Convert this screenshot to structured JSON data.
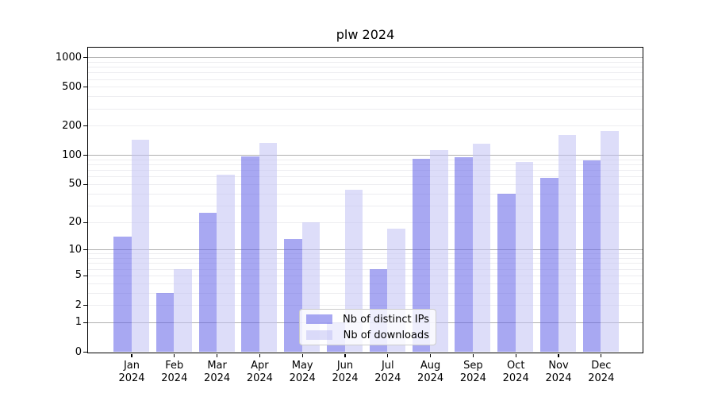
{
  "title": "plw 2024",
  "legend": {
    "items": [
      {
        "label": "Nb of distinct IPs",
        "color": "rgba(97,97,232,0.55)"
      },
      {
        "label": "Nb of downloads",
        "color": "rgba(193,193,244,0.55)"
      }
    ]
  },
  "colors": {
    "distinct_ips_bar": "rgba(97,97,232,0.55)",
    "downloads_bar": "rgba(193,193,244,0.55)",
    "major_grid": "#b0b0b0",
    "minor_grid": "#ededf0",
    "axis": "#000000"
  },
  "chart_data": {
    "type": "bar",
    "title": "plw 2024",
    "categories": [
      "Jan 2024",
      "Feb 2024",
      "Mar 2024",
      "Apr 2024",
      "May 2024",
      "Jun 2024",
      "Jul 2024",
      "Aug 2024",
      "Sep 2024",
      "Oct 2024",
      "Nov 2024",
      "Dec 2024"
    ],
    "series": [
      {
        "name": "Nb of distinct IPs",
        "color": "rgba(97,97,232,0.55)",
        "values": [
          14,
          3,
          25,
          97,
          13,
          1,
          6,
          91,
          95,
          40,
          58,
          89
        ]
      },
      {
        "name": "Nb of downloads",
        "color": "rgba(193,193,244,0.55)",
        "values": [
          144,
          6,
          63,
          133,
          20,
          44,
          17,
          113,
          130,
          85,
          160,
          176
        ]
      }
    ],
    "xlabel": "",
    "ylabel": "",
    "yscale": "log10(1+x)",
    "yticks": [
      0,
      1,
      2,
      5,
      10,
      20,
      50,
      100,
      200,
      500,
      1000
    ],
    "ylim": [
      0,
      1263
    ],
    "grid": "major-and-minor-horizontal",
    "legend_position": "inside lower-center"
  }
}
